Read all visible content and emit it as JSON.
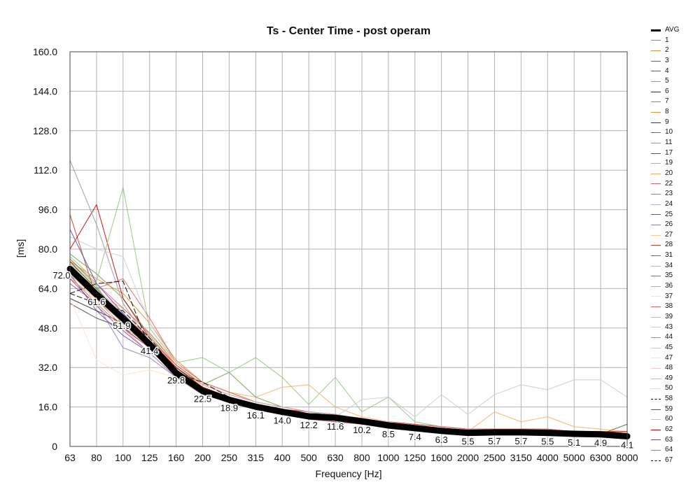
{
  "chart_data": {
    "type": "line",
    "title": "Ts - Center Time - post operam",
    "xlabel": "Frequency [Hz]",
    "ylabel": "[ms]",
    "ylim": [
      0,
      160
    ],
    "y_ticks": [
      "0",
      "16.0",
      "32.0",
      "48.0",
      "64.0",
      "80.0",
      "96.0",
      "112.0",
      "128.0",
      "144.0",
      "160.0"
    ],
    "grid": true,
    "legend_position": "right",
    "categories": [
      "63",
      "80",
      "100",
      "125",
      "160",
      "200",
      "250",
      "315",
      "400",
      "500",
      "630",
      "800",
      "1000",
      "1250",
      "1600",
      "2000",
      "2500",
      "3150",
      "4000",
      "5000",
      "6300",
      "8000"
    ],
    "series": [
      {
        "name": "AVG",
        "color": "#000000",
        "values": [
          72.0,
          61.6,
          51.9,
          41.4,
          29.8,
          22.5,
          18.9,
          16.1,
          14.0,
          12.2,
          11.6,
          10.2,
          8.5,
          7.4,
          6.3,
          5.5,
          5.7,
          5.7,
          5.5,
          5.1,
          4.9,
          4.1
        ]
      },
      {
        "name": "1",
        "color": "#6aa84f",
        "values": [
          78,
          70,
          60,
          45,
          32,
          24,
          20,
          17,
          15,
          13,
          12,
          11,
          9,
          8,
          7,
          6,
          6,
          6,
          6,
          5,
          5,
          4
        ]
      },
      {
        "name": "2",
        "color": "#e69138",
        "values": [
          75,
          68,
          62,
          50,
          35,
          26,
          22,
          18,
          16,
          14,
          13,
          11,
          10,
          8,
          7,
          6,
          6,
          6,
          5,
          5,
          5,
          4
        ]
      },
      {
        "name": "3",
        "color": "#cc4125",
        "values": [
          94,
          60,
          48,
          40,
          30,
          22,
          19,
          16,
          14,
          12,
          11,
          10,
          9,
          8,
          7,
          6,
          6,
          6,
          6,
          5,
          5,
          5
        ]
      },
      {
        "name": "4",
        "color": "#674ea7",
        "values": [
          70,
          55,
          45,
          38,
          28,
          21,
          18,
          15,
          13,
          12,
          11,
          10,
          8,
          7,
          6,
          5,
          5,
          5,
          5,
          5,
          4,
          4
        ]
      },
      {
        "name": "5",
        "color": "#999999",
        "values": [
          72,
          62,
          50,
          40,
          30,
          23,
          19,
          16,
          14,
          13,
          12,
          10,
          9,
          8,
          7,
          6,
          6,
          6,
          6,
          5,
          5,
          4
        ]
      },
      {
        "name": "6",
        "color": "#333333",
        "values": [
          60,
          55,
          50,
          42,
          30,
          23,
          19,
          16,
          14,
          12,
          11,
          10,
          9,
          7,
          6,
          5,
          5,
          5,
          5,
          5,
          4,
          4
        ]
      },
      {
        "name": "7",
        "color": "#6aa84f",
        "values": [
          76,
          65,
          50,
          40,
          30,
          24,
          20,
          17,
          15,
          13,
          12,
          11,
          9,
          8,
          7,
          6,
          6,
          6,
          6,
          5,
          5,
          4
        ]
      },
      {
        "name": "8",
        "color": "#e69138",
        "values": [
          68,
          60,
          52,
          44,
          32,
          24,
          20,
          17,
          15,
          13,
          12,
          10,
          9,
          8,
          7,
          6,
          6,
          6,
          6,
          5,
          5,
          4
        ]
      },
      {
        "name": "9",
        "color": "#cc0000",
        "values": [
          80,
          98,
          60,
          44,
          32,
          24,
          20,
          17,
          15,
          14,
          13,
          11,
          10,
          9,
          8,
          7,
          7,
          7,
          7,
          6,
          6,
          6
        ]
      },
      {
        "name": "10",
        "color": "#a64d79",
        "values": [
          66,
          58,
          48,
          40,
          30,
          22,
          19,
          16,
          14,
          12,
          11,
          10,
          8,
          7,
          6,
          5,
          5,
          5,
          5,
          5,
          4,
          4
        ]
      },
      {
        "name": "11",
        "color": "#999999",
        "values": [
          116,
          90,
          58,
          42,
          30,
          23,
          20,
          17,
          15,
          13,
          12,
          11,
          9,
          8,
          7,
          6,
          6,
          6,
          6,
          5,
          5,
          4
        ]
      },
      {
        "name": "17",
        "color": "#555555",
        "values": [
          58,
          52,
          48,
          42,
          31,
          23,
          19,
          16,
          14,
          12,
          11,
          10,
          9,
          7,
          6,
          5,
          5,
          5,
          5,
          5,
          4,
          4
        ]
      },
      {
        "name": "19",
        "color": "#93c47d",
        "values": [
          77,
          67,
          105,
          48,
          34,
          36,
          30,
          36,
          28,
          17,
          28,
          14,
          20,
          10,
          8,
          7,
          7,
          7,
          7,
          6,
          6,
          6
        ]
      },
      {
        "name": "20",
        "color": "#f6b26b",
        "values": [
          73,
          62,
          56,
          46,
          34,
          26,
          22,
          20,
          24,
          25,
          16,
          12,
          10,
          8,
          7,
          6,
          14,
          10,
          12,
          8,
          7,
          6
        ]
      },
      {
        "name": "22",
        "color": "#e06666",
        "values": [
          74,
          64,
          68,
          52,
          34,
          26,
          22,
          18,
          16,
          14,
          13,
          11,
          10,
          9,
          8,
          7,
          7,
          7,
          7,
          6,
          6,
          5
        ]
      },
      {
        "name": "23",
        "color": "#8e7cc3",
        "values": [
          69,
          58,
          40,
          36,
          28,
          21,
          18,
          15,
          13,
          12,
          11,
          10,
          8,
          7,
          6,
          5,
          5,
          5,
          5,
          4,
          4,
          4
        ]
      },
      {
        "name": "24",
        "color": "#b4a7d6",
        "values": [
          71,
          60,
          50,
          40,
          30,
          22,
          19,
          16,
          14,
          12,
          11,
          10,
          9,
          7,
          6,
          5,
          5,
          5,
          5,
          5,
          4,
          4
        ]
      },
      {
        "name": "25",
        "color": "#666666",
        "values": [
          70,
          61,
          51,
          40,
          30,
          22,
          20,
          17,
          15,
          13,
          12,
          10,
          9,
          8,
          7,
          6,
          6,
          6,
          6,
          5,
          5,
          5
        ]
      },
      {
        "name": "26",
        "color": "#6aa84f",
        "values": [
          72,
          62,
          52,
          42,
          32,
          25,
          30,
          20,
          16,
          14,
          12,
          11,
          9,
          8,
          7,
          6,
          6,
          6,
          6,
          5,
          5,
          5
        ]
      },
      {
        "name": "27",
        "color": "#f9cb9c",
        "values": [
          70,
          60,
          50,
          40,
          30,
          23,
          19,
          16,
          14,
          12,
          11,
          10,
          9,
          7,
          6,
          5,
          5,
          5,
          5,
          5,
          4,
          4
        ]
      },
      {
        "name": "28",
        "color": "#cc4125",
        "values": [
          75,
          63,
          53,
          44,
          33,
          25,
          21,
          18,
          16,
          14,
          13,
          11,
          10,
          8,
          7,
          6,
          6,
          6,
          6,
          5,
          5,
          5
        ]
      },
      {
        "name": "31",
        "color": "#a64d79",
        "values": [
          68,
          57,
          47,
          38,
          28,
          21,
          18,
          15,
          13,
          11,
          10,
          9,
          8,
          7,
          6,
          5,
          5,
          5,
          5,
          4,
          4,
          4
        ]
      },
      {
        "name": "34",
        "color": "#b7b7b7",
        "values": [
          74,
          64,
          54,
          44,
          32,
          24,
          20,
          17,
          15,
          13,
          12,
          11,
          9,
          8,
          7,
          6,
          6,
          6,
          6,
          5,
          5,
          5
        ]
      },
      {
        "name": "35",
        "color": "#777777",
        "values": [
          72,
          60,
          50,
          40,
          30,
          22,
          19,
          16,
          14,
          12,
          11,
          10,
          9,
          7,
          6,
          5,
          5,
          5,
          5,
          5,
          4,
          4
        ]
      },
      {
        "name": "36",
        "color": "#93c47d",
        "values": [
          73,
          63,
          52,
          42,
          31,
          24,
          20,
          17,
          15,
          13,
          12,
          10,
          9,
          8,
          7,
          6,
          6,
          6,
          6,
          5,
          5,
          4
        ]
      },
      {
        "name": "37",
        "color": "#ffe599",
        "values": [
          70,
          59,
          49,
          40,
          30,
          22,
          19,
          16,
          14,
          12,
          11,
          10,
          8,
          7,
          6,
          5,
          5,
          5,
          5,
          4,
          4,
          4
        ]
      },
      {
        "name": "38",
        "color": "#e06666",
        "values": [
          76,
          66,
          56,
          46,
          33,
          25,
          21,
          18,
          16,
          14,
          13,
          11,
          10,
          9,
          8,
          7,
          7,
          7,
          7,
          6,
          6,
          5
        ]
      },
      {
        "name": "39",
        "color": "#d5a6bd",
        "values": [
          69,
          58,
          48,
          38,
          28,
          21,
          18,
          15,
          13,
          12,
          11,
          10,
          8,
          7,
          6,
          5,
          5,
          5,
          5,
          4,
          4,
          4
        ]
      },
      {
        "name": "43",
        "color": "#cccccc",
        "values": [
          71,
          61,
          51,
          41,
          31,
          23,
          20,
          17,
          15,
          13,
          12,
          19,
          20,
          12,
          21,
          13,
          21,
          25,
          23,
          27,
          27,
          20
        ]
      },
      {
        "name": "44",
        "color": "#999999",
        "values": [
          72,
          62,
          52,
          42,
          31,
          23,
          19,
          16,
          14,
          12,
          11,
          10,
          9,
          8,
          7,
          6,
          6,
          6,
          6,
          5,
          5,
          4
        ]
      },
      {
        "name": "45",
        "color": "#cccccc",
        "values": [
          85,
          80,
          77,
          50,
          34,
          25,
          21,
          18,
          16,
          14,
          13,
          11,
          10,
          8,
          7,
          6,
          6,
          6,
          6,
          5,
          5,
          5
        ]
      },
      {
        "name": "47",
        "color": "#fce5cd",
        "values": [
          60,
          35,
          29,
          31,
          28,
          22,
          19,
          16,
          14,
          12,
          11,
          10,
          9,
          7,
          6,
          5,
          5,
          5,
          5,
          5,
          4,
          4
        ]
      },
      {
        "name": "48",
        "color": "#f4cccc",
        "values": [
          74,
          64,
          54,
          44,
          32,
          24,
          20,
          17,
          15,
          13,
          12,
          11,
          9,
          8,
          7,
          6,
          6,
          6,
          6,
          5,
          5,
          5
        ]
      },
      {
        "name": "49",
        "color": "#bbbbbb",
        "values": [
          70,
          60,
          50,
          40,
          30,
          22,
          19,
          16,
          14,
          12,
          11,
          10,
          8,
          7,
          6,
          5,
          5,
          5,
          5,
          5,
          4,
          4
        ]
      },
      {
        "name": "50",
        "color": "#dddddd",
        "values": [
          72,
          62,
          52,
          42,
          31,
          23,
          20,
          17,
          15,
          13,
          12,
          10,
          9,
          8,
          7,
          6,
          6,
          6,
          6,
          5,
          5,
          4
        ]
      },
      {
        "name": "58",
        "color": "#000000",
        "dashed": true,
        "values": [
          62,
          66,
          67,
          40,
          30,
          26,
          20,
          17,
          15,
          13,
          12,
          11,
          9,
          8,
          7,
          6,
          6,
          6,
          6,
          5,
          5,
          4
        ]
      },
      {
        "name": "59",
        "color": "#38761d",
        "values": [
          75,
          64,
          52,
          42,
          32,
          24,
          20,
          17,
          15,
          13,
          12,
          11,
          9,
          8,
          7,
          6,
          6,
          6,
          6,
          5,
          5,
          9
        ]
      },
      {
        "name": "60",
        "color": "#f1c232",
        "values": [
          71,
          61,
          51,
          41,
          30,
          23,
          19,
          16,
          14,
          12,
          11,
          10,
          9,
          7,
          6,
          5,
          5,
          5,
          5,
          5,
          4,
          4
        ]
      },
      {
        "name": "62",
        "color": "#cc0000",
        "values": [
          73,
          63,
          53,
          43,
          32,
          24,
          20,
          17,
          15,
          13,
          12,
          11,
          9,
          8,
          7,
          6,
          6,
          6,
          6,
          6,
          6,
          6
        ]
      },
      {
        "name": "63",
        "color": "#674ea7",
        "values": [
          88,
          66,
          54,
          42,
          31,
          23,
          19,
          16,
          14,
          12,
          11,
          10,
          9,
          7,
          6,
          5,
          5,
          5,
          5,
          5,
          4,
          4
        ]
      },
      {
        "name": "64",
        "color": "#888888",
        "values": [
          71,
          61,
          51,
          41,
          31,
          23,
          19,
          16,
          14,
          12,
          11,
          10,
          9,
          8,
          7,
          6,
          6,
          6,
          6,
          5,
          5,
          4
        ]
      },
      {
        "name": "67",
        "color": "#000000",
        "dashed": true,
        "values": [
          62,
          58,
          55,
          44,
          31,
          23,
          19,
          16,
          14,
          12,
          11,
          10,
          9,
          7,
          6,
          5,
          5,
          5,
          5,
          5,
          4,
          4
        ]
      }
    ]
  }
}
